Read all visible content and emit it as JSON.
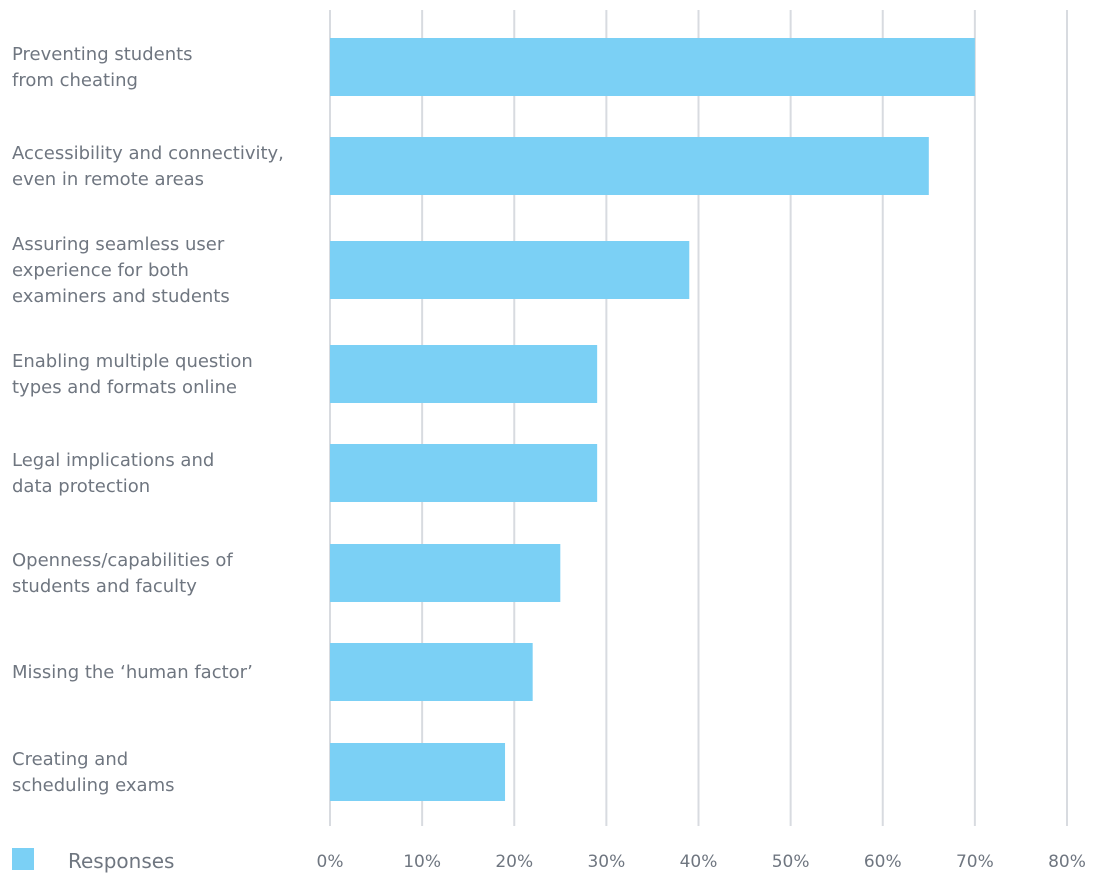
{
  "chart_data": {
    "type": "bar",
    "orientation": "horizontal",
    "categories": [
      [
        "Preventing students",
        "from cheating"
      ],
      [
        "Accessibility and connectivity,",
        "even in remote areas"
      ],
      [
        "Assuring seamless user",
        "experience for both",
        "examiners and students"
      ],
      [
        "Enabling multiple question",
        "types and formats online"
      ],
      [
        "Legal implications and",
        "data protection"
      ],
      [
        "Openness/capabilities of",
        "students and faculty"
      ],
      [
        "Missing the ‘human factor’"
      ],
      [
        "Creating and",
        "scheduling exams"
      ]
    ],
    "series": [
      {
        "name": "Responses",
        "values": [
          70,
          65,
          39,
          29,
          29,
          25,
          22,
          19
        ]
      }
    ],
    "xlim": [
      0,
      80
    ],
    "x_ticks": [
      "0%",
      "10%",
      "20%",
      "30%",
      "40%",
      "50%",
      "60%",
      "70%",
      "80%"
    ],
    "grid": "vertical",
    "legend": "bottom-left",
    "colors": {
      "bar": "#7bd0f5",
      "grid": "#d8dbe0",
      "text": "#6f7680"
    }
  }
}
